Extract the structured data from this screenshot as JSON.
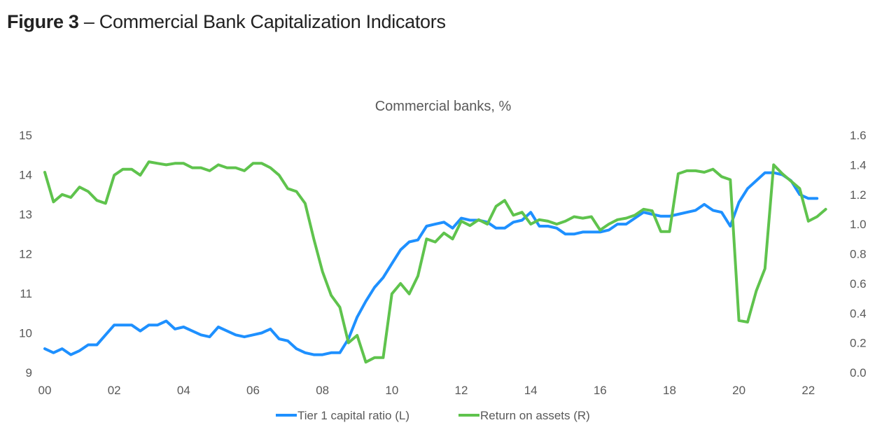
{
  "figure": {
    "label": "Figure 3",
    "separator": " – ",
    "caption": "Commercial Bank Capitalization Indicators"
  },
  "chart_data": {
    "type": "line",
    "title": "Commercial banks, %",
    "xlabel": "",
    "x_ticks": [
      "00",
      "02",
      "04",
      "06",
      "08",
      "10",
      "12",
      "14",
      "16",
      "18",
      "20",
      "22"
    ],
    "x_range": [
      2000,
      2022.75
    ],
    "y_left": {
      "label": "",
      "range": [
        9,
        15
      ],
      "ticks": [
        9,
        10,
        11,
        12,
        13,
        14,
        15
      ]
    },
    "y_right": {
      "label": "",
      "range": [
        0.0,
        1.6
      ],
      "ticks": [
        "0.0",
        "0.2",
        "0.4",
        "0.6",
        "0.8",
        "1.0",
        "1.2",
        "1.4",
        "1.6"
      ]
    },
    "grid": false,
    "legend_position": "bottom-center",
    "series": [
      {
        "name": "Tier 1 capital ratio (L)",
        "axis": "left",
        "color": "#1e90ff",
        "start": 2000,
        "step": 0.25,
        "values": [
          9.6,
          9.5,
          9.6,
          9.45,
          9.55,
          9.7,
          9.7,
          9.95,
          10.2,
          10.2,
          10.2,
          10.05,
          10.2,
          10.2,
          10.3,
          10.1,
          10.15,
          10.05,
          9.95,
          9.9,
          10.15,
          10.05,
          9.95,
          9.9,
          9.95,
          10.0,
          10.1,
          9.85,
          9.8,
          9.6,
          9.5,
          9.45,
          9.45,
          9.5,
          9.5,
          9.85,
          10.4,
          10.8,
          11.15,
          11.4,
          11.75,
          12.1,
          12.3,
          12.35,
          12.7,
          12.75,
          12.8,
          12.65,
          12.9,
          12.85,
          12.85,
          12.8,
          12.65,
          12.65,
          12.8,
          12.85,
          13.05,
          12.7,
          12.7,
          12.65,
          12.5,
          12.5,
          12.55,
          12.55,
          12.55,
          12.6,
          12.75,
          12.75,
          12.9,
          13.05,
          13.0,
          12.95,
          12.95,
          13.0,
          13.05,
          13.1,
          13.25,
          13.1,
          13.05,
          12.7,
          13.3,
          13.65,
          13.85,
          14.05,
          14.05,
          14.0,
          13.85,
          13.5,
          13.4,
          13.4
        ]
      },
      {
        "name": "Return on assets (R)",
        "axis": "right",
        "color": "#5fc34d",
        "start": 2000,
        "step": 0.25,
        "values": [
          1.35,
          1.15,
          1.2,
          1.18,
          1.25,
          1.22,
          1.16,
          1.14,
          1.33,
          1.37,
          1.37,
          1.33,
          1.42,
          1.41,
          1.4,
          1.41,
          1.41,
          1.38,
          1.38,
          1.36,
          1.4,
          1.38,
          1.38,
          1.36,
          1.41,
          1.41,
          1.38,
          1.33,
          1.24,
          1.22,
          1.14,
          0.9,
          0.68,
          0.52,
          0.44,
          0.2,
          0.25,
          0.07,
          0.1,
          0.1,
          0.53,
          0.6,
          0.53,
          0.65,
          0.9,
          0.88,
          0.94,
          0.9,
          1.02,
          0.99,
          1.03,
          1.0,
          1.12,
          1.16,
          1.06,
          1.08,
          1.0,
          1.03,
          1.02,
          1.0,
          1.02,
          1.05,
          1.04,
          1.05,
          0.96,
          1.0,
          1.03,
          1.04,
          1.06,
          1.1,
          1.09,
          0.95,
          0.95,
          1.34,
          1.36,
          1.36,
          1.35,
          1.37,
          1.32,
          1.3,
          0.35,
          0.34,
          0.55,
          0.7,
          1.4,
          1.34,
          1.29,
          1.24,
          1.02,
          1.05,
          1.1
        ]
      }
    ]
  }
}
